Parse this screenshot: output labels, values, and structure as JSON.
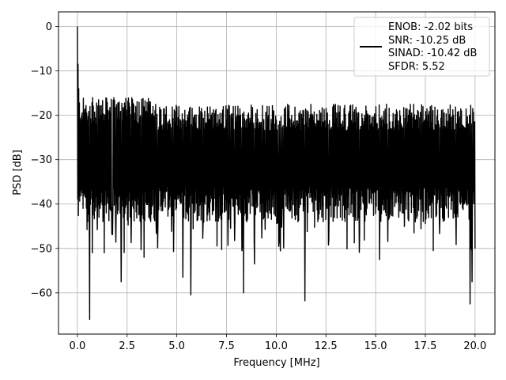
{
  "chart_data": {
    "type": "line",
    "title": "",
    "xlabel": "Frequency [MHz]",
    "ylabel": "PSD [dB]",
    "xlim": [
      -0.95,
      21.0
    ],
    "ylim": [
      -69.3,
      3.3
    ],
    "x_ticks": [
      0.0,
      2.5,
      5.0,
      7.5,
      10.0,
      12.5,
      15.0,
      17.5,
      20.0
    ],
    "x_tick_labels": [
      "0.0",
      "2.5",
      "5.0",
      "7.5",
      "10.0",
      "12.5",
      "15.0",
      "17.5",
      "20.0"
    ],
    "y_ticks": [
      0,
      -10,
      -20,
      -30,
      -40,
      -50,
      -60
    ],
    "y_tick_labels": [
      "0",
      "−10",
      "−20",
      "−30",
      "−40",
      "−50",
      "−60"
    ],
    "grid": true,
    "legend": {
      "placement": "top-right",
      "lines": [
        "ENOB: -2.02 bits",
        "SNR: -10.25 dB",
        "SINAD: -10.42 dB",
        "SFDR: 5.52"
      ]
    },
    "series": [
      {
        "color": "#000000",
        "x_start": 0.0,
        "x_end": 20.0,
        "n_points": 1200,
        "noise_floor_db": -30,
        "noise_upper_db": -19,
        "noise_lower_db": -40,
        "peak": {
          "x": 0.0,
          "y": 0.0
        },
        "notable_points": [
          {
            "x": 0.03,
            "y": -8.5
          },
          {
            "x": 0.06,
            "y": -14
          },
          {
            "x": 0.62,
            "y": -66
          },
          {
            "x": 0.75,
            "y": -51
          },
          {
            "x": 1.35,
            "y": -51
          },
          {
            "x": 2.2,
            "y": -57.5
          },
          {
            "x": 3.35,
            "y": -52
          },
          {
            "x": 5.3,
            "y": -56.5
          },
          {
            "x": 5.7,
            "y": -60.5
          },
          {
            "x": 8.35,
            "y": -60
          },
          {
            "x": 8.9,
            "y": -53.5
          },
          {
            "x": 11.45,
            "y": -61.8
          },
          {
            "x": 15.2,
            "y": -52.5
          },
          {
            "x": 17.9,
            "y": -50.5
          },
          {
            "x": 19.75,
            "y": -62.5
          },
          {
            "x": 19.85,
            "y": -57.5
          }
        ]
      }
    ]
  }
}
